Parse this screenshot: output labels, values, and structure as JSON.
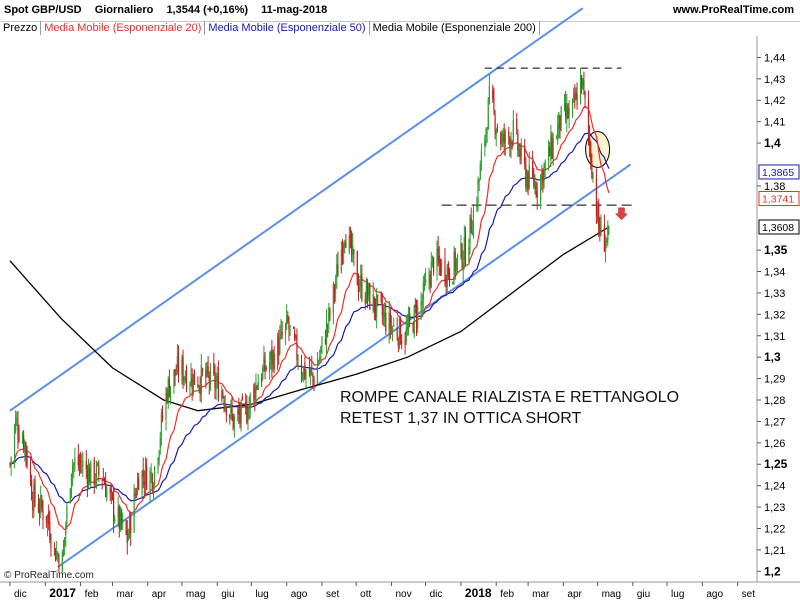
{
  "header": {
    "instrument": "Spot GBP/USD",
    "timeframe": "Giornaliero",
    "last_price": "1,3544 (+0,16%)",
    "date": "11-mag-2018",
    "site": "www.ProRealTime.com"
  },
  "legend": [
    {
      "label": "Prezzo",
      "color": "#000000"
    },
    {
      "label": "Media Mobile (Esponenziale 20)",
      "color": "#e83030"
    },
    {
      "label": "Media Mobile (Esponenziale 50)",
      "color": "#1a1aa8"
    },
    {
      "label": "Media Mobile (Esponenziale 200)",
      "color": "#000000"
    }
  ],
  "watermark": "© ProRealTime.com",
  "annotation": {
    "line1": "ROMPE CANALE RIALZISTA E RETTANGOLO",
    "line2": "RETEST 1,37 IN OTTICA SHORT"
  },
  "price_tags": [
    {
      "value": 1.3865,
      "label": "1,3865",
      "color": "#1a1aa8"
    },
    {
      "value": 1.3741,
      "label": "1,3741",
      "color": "#e83030"
    },
    {
      "value": 1.3608,
      "label": "1,3608",
      "color": "#000000"
    }
  ],
  "chart_data": {
    "type": "candlestick",
    "ylim": [
      1.195,
      1.45
    ],
    "y_ticks": [
      {
        "v": 1.2,
        "label": "1,2",
        "bold": true
      },
      {
        "v": 1.21,
        "label": "1,21"
      },
      {
        "v": 1.22,
        "label": "1,22"
      },
      {
        "v": 1.23,
        "label": "1,23"
      },
      {
        "v": 1.24,
        "label": "1,24"
      },
      {
        "v": 1.25,
        "label": "1,25",
        "bold": true
      },
      {
        "v": 1.26,
        "label": "1,26"
      },
      {
        "v": 1.27,
        "label": "1,27"
      },
      {
        "v": 1.28,
        "label": "1,28"
      },
      {
        "v": 1.29,
        "label": "1,29"
      },
      {
        "v": 1.3,
        "label": "1,3",
        "bold": true
      },
      {
        "v": 1.31,
        "label": "1,31"
      },
      {
        "v": 1.32,
        "label": "1,32"
      },
      {
        "v": 1.33,
        "label": "1,33"
      },
      {
        "v": 1.34,
        "label": "1,34"
      },
      {
        "v": 1.35,
        "label": "1,35",
        "bold": true
      },
      {
        "v": 1.38,
        "label": "1,38"
      },
      {
        "v": 1.4,
        "label": "1,4",
        "bold": true
      },
      {
        "v": 1.41,
        "label": "1,41"
      },
      {
        "v": 1.42,
        "label": "1,42"
      },
      {
        "v": 1.43,
        "label": "1,43"
      },
      {
        "v": 1.44,
        "label": "1,44"
      }
    ],
    "x_ticks": [
      {
        "label": "dic"
      },
      {
        "label": "2017",
        "bold": true
      },
      {
        "label": "feb"
      },
      {
        "label": "mar"
      },
      {
        "label": "apr"
      },
      {
        "label": "mag"
      },
      {
        "label": "giu"
      },
      {
        "label": "lug"
      },
      {
        "label": "ago"
      },
      {
        "label": "set"
      },
      {
        "label": "ott"
      },
      {
        "label": "nov"
      },
      {
        "label": "dic"
      },
      {
        "label": "2018",
        "bold": true
      },
      {
        "label": "feb"
      },
      {
        "label": "mar"
      },
      {
        "label": "apr"
      },
      {
        "label": "mag"
      },
      {
        "label": "giu"
      },
      {
        "label": "lug"
      },
      {
        "label": "ago"
      },
      {
        "label": "set"
      }
    ],
    "price_path": [
      [
        "2016-12-01",
        1.25
      ],
      [
        "2016-12-06",
        1.27
      ],
      [
        "2016-12-14",
        1.26
      ],
      [
        "2016-12-21",
        1.235
      ],
      [
        "2017-01-03",
        1.225
      ],
      [
        "2017-01-09",
        1.21
      ],
      [
        "2017-01-16",
        1.205
      ],
      [
        "2017-01-24",
        1.25
      ],
      [
        "2017-02-02",
        1.25
      ],
      [
        "2017-02-10",
        1.245
      ],
      [
        "2017-02-20",
        1.245
      ],
      [
        "2017-03-01",
        1.23
      ],
      [
        "2017-03-14",
        1.215
      ],
      [
        "2017-03-24",
        1.245
      ],
      [
        "2017-04-06",
        1.245
      ],
      [
        "2017-04-18",
        1.285
      ],
      [
        "2017-04-28",
        1.295
      ],
      [
        "2017-05-10",
        1.29
      ],
      [
        "2017-05-24",
        1.29
      ],
      [
        "2017-06-05",
        1.285
      ],
      [
        "2017-06-15",
        1.27
      ],
      [
        "2017-06-27",
        1.275
      ],
      [
        "2017-07-07",
        1.29
      ],
      [
        "2017-07-20",
        1.3
      ],
      [
        "2017-08-02",
        1.315
      ],
      [
        "2017-08-14",
        1.295
      ],
      [
        "2017-08-25",
        1.29
      ],
      [
        "2017-09-08",
        1.32
      ],
      [
        "2017-09-21",
        1.36
      ],
      [
        "2017-10-03",
        1.335
      ],
      [
        "2017-10-16",
        1.325
      ],
      [
        "2017-10-30",
        1.315
      ],
      [
        "2017-11-13",
        1.31
      ],
      [
        "2017-11-27",
        1.325
      ],
      [
        "2017-12-08",
        1.345
      ],
      [
        "2017-12-22",
        1.34
      ],
      [
        "2018-01-05",
        1.35
      ],
      [
        "2018-01-15",
        1.375
      ],
      [
        "2018-01-26",
        1.42
      ],
      [
        "2018-02-06",
        1.4
      ],
      [
        "2018-02-16",
        1.405
      ],
      [
        "2018-02-27",
        1.385
      ],
      [
        "2018-03-09",
        1.38
      ],
      [
        "2018-03-20",
        1.395
      ],
      [
        "2018-03-29",
        1.41
      ],
      [
        "2018-04-09",
        1.415
      ],
      [
        "2018-04-17",
        1.43
      ],
      [
        "2018-04-25",
        1.395
      ],
      [
        "2018-05-02",
        1.36
      ],
      [
        "2018-05-07",
        1.355
      ],
      [
        "2018-05-11",
        1.3544
      ]
    ],
    "ema200_path": [
      [
        "2016-12-01",
        1.345
      ],
      [
        "2017-01-15",
        1.318
      ],
      [
        "2017-03-01",
        1.295
      ],
      [
        "2017-04-15",
        1.28
      ],
      [
        "2017-05-15",
        1.275
      ],
      [
        "2017-07-01",
        1.278
      ],
      [
        "2017-08-15",
        1.285
      ],
      [
        "2017-10-01",
        1.292
      ],
      [
        "2017-11-15",
        1.3
      ],
      [
        "2018-01-01",
        1.312
      ],
      [
        "2018-02-15",
        1.33
      ],
      [
        "2018-04-01",
        1.348
      ],
      [
        "2018-05-11",
        1.3608
      ]
    ],
    "annotations": {
      "channel_upper": [
        [
          "2016-12-01",
          1.275
        ],
        [
          "2018-04-18",
          1.463
        ]
      ],
      "channel_lower": [
        [
          "2017-01-12",
          1.202
        ],
        [
          "2018-05-30",
          1.39
        ]
      ],
      "resistance": {
        "value": 1.435,
        "from": "2018-01-22",
        "to": "2018-05-22"
      },
      "rect_support": {
        "value": 1.371,
        "from": "2017-12-15",
        "to": "2018-06-04"
      },
      "circle_center": [
        "2018-05-01",
        1.397
      ]
    }
  }
}
